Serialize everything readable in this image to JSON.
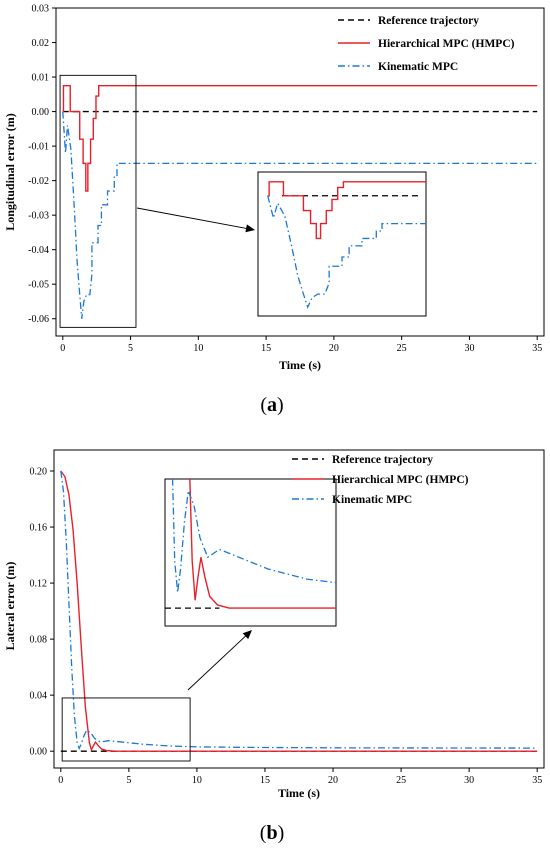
{
  "chart_data": [
    {
      "type": "line",
      "caption": {
        "open": "(",
        "letter": "a",
        "close": ")"
      },
      "xlabel": "Time (s)",
      "ylabel": "Longitudinal error (m)",
      "xlim": [
        -0.5,
        35.5
      ],
      "ylim": [
        -0.065,
        0.03
      ],
      "xticks": [
        "0",
        "5",
        "10",
        "15",
        "20",
        "25",
        "30",
        "35"
      ],
      "yticks": [
        "0.03",
        "0.02",
        "0.01",
        "0.00",
        "-0.01",
        "-0.02",
        "-0.03",
        "-0.04",
        "-0.05",
        "-0.06"
      ],
      "legend_position": "top-right",
      "colors": {
        "ref": "#000000",
        "hmpc": "#e8202a",
        "kmpc": "#1a78d8"
      },
      "series": [
        {
          "name": "Reference trajectory",
          "style": "dashed",
          "x": [
            0,
            35
          ],
          "y": [
            0,
            0
          ]
        },
        {
          "name": "Hierarchical MPC (HMPC)",
          "style": "solid",
          "x": [
            0,
            0.05,
            0.05,
            0.55,
            0.55,
            1.25,
            1.25,
            1.5,
            1.5,
            1.7,
            1.7,
            1.85,
            1.85,
            2.05,
            2.05,
            2.25,
            2.25,
            2.45,
            2.45,
            2.65,
            2.65,
            35
          ],
          "y": [
            0,
            0,
            0.0075,
            0.0075,
            0,
            0,
            -0.008,
            -0.008,
            -0.015,
            -0.015,
            -0.023,
            -0.023,
            -0.015,
            -0.015,
            -0.008,
            -0.008,
            -0.002,
            -0.002,
            0.0045,
            0.0045,
            0.0075,
            0.0075
          ]
        },
        {
          "name": "Kinematic MPC",
          "style": "dashdot",
          "x": [
            0,
            0.2,
            0.35,
            0.6,
            0.85,
            1.05,
            1.25,
            1.4,
            1.55,
            1.75,
            2.0,
            2.15,
            2.15,
            2.6,
            2.6,
            2.85,
            2.85,
            3.3,
            3.3,
            3.8,
            3.8,
            4.0,
            4.0,
            35
          ],
          "y": [
            0,
            -0.012,
            -0.004,
            -0.011,
            -0.028,
            -0.043,
            -0.053,
            -0.06,
            -0.055,
            -0.053,
            -0.053,
            -0.047,
            -0.038,
            -0.038,
            -0.033,
            -0.033,
            -0.027,
            -0.027,
            -0.023,
            -0.023,
            -0.019,
            -0.019,
            -0.015,
            -0.015
          ]
        }
      ],
      "zoom_source": {
        "x": [
          -0.2,
          5.4
        ],
        "y": [
          -0.0625,
          0.0105
        ]
      }
    },
    {
      "type": "line",
      "caption": {
        "open": "(",
        "letter": "b",
        "close": ")"
      },
      "xlabel": "Time (s)",
      "ylabel": "Lateral error (m)",
      "xlim": [
        -0.5,
        35.5
      ],
      "ylim": [
        -0.012,
        0.215
      ],
      "xticks": [
        "0",
        "5",
        "10",
        "15",
        "20",
        "25",
        "30",
        "35"
      ],
      "yticks": [
        "0.20",
        "0.16",
        "0.12",
        "0.08",
        "0.04",
        "0.00"
      ],
      "legend_position": "top-right",
      "colors": {
        "ref": "#000000",
        "hmpc": "#e8202a",
        "kmpc": "#1a78d8"
      },
      "series": [
        {
          "name": "Reference trajectory",
          "style": "dashed",
          "x": [
            0,
            3.5
          ],
          "y": [
            0,
            0
          ]
        },
        {
          "name": "Hierarchical MPC (HMPC)",
          "style": "solid",
          "x": [
            0,
            0.3,
            0.6,
            0.9,
            1.2,
            1.5,
            1.8,
            2.1,
            2.25,
            2.4,
            2.55,
            2.75,
            3.0,
            3.4,
            4.0,
            35
          ],
          "y": [
            0.2,
            0.196,
            0.183,
            0.158,
            0.12,
            0.075,
            0.032,
            0.006,
            0.001,
            0.004,
            0.0065,
            0.004,
            0.0015,
            0.0004,
            0,
            0
          ]
        },
        {
          "name": "Kinematic MPC",
          "style": "dashdot",
          "x": [
            0,
            0.2,
            0.4,
            0.6,
            0.8,
            1.0,
            1.2,
            1.35,
            1.5,
            1.7,
            1.9,
            2.2,
            2.5,
            2.9,
            3.5,
            4.5,
            6,
            8,
            10,
            14,
            20,
            35
          ],
          "y": [
            0.2,
            0.185,
            0.15,
            0.105,
            0.06,
            0.025,
            0.006,
            0.002,
            0.005,
            0.011,
            0.015,
            0.013,
            0.009,
            0.0065,
            0.0075,
            0.0065,
            0.005,
            0.0037,
            0.0031,
            0.0027,
            0.0024,
            0.0022
          ]
        }
      ],
      "zoom_source": {
        "x": [
          0.1,
          9.5
        ],
        "y": [
          -0.007,
          0.038
        ]
      }
    }
  ]
}
